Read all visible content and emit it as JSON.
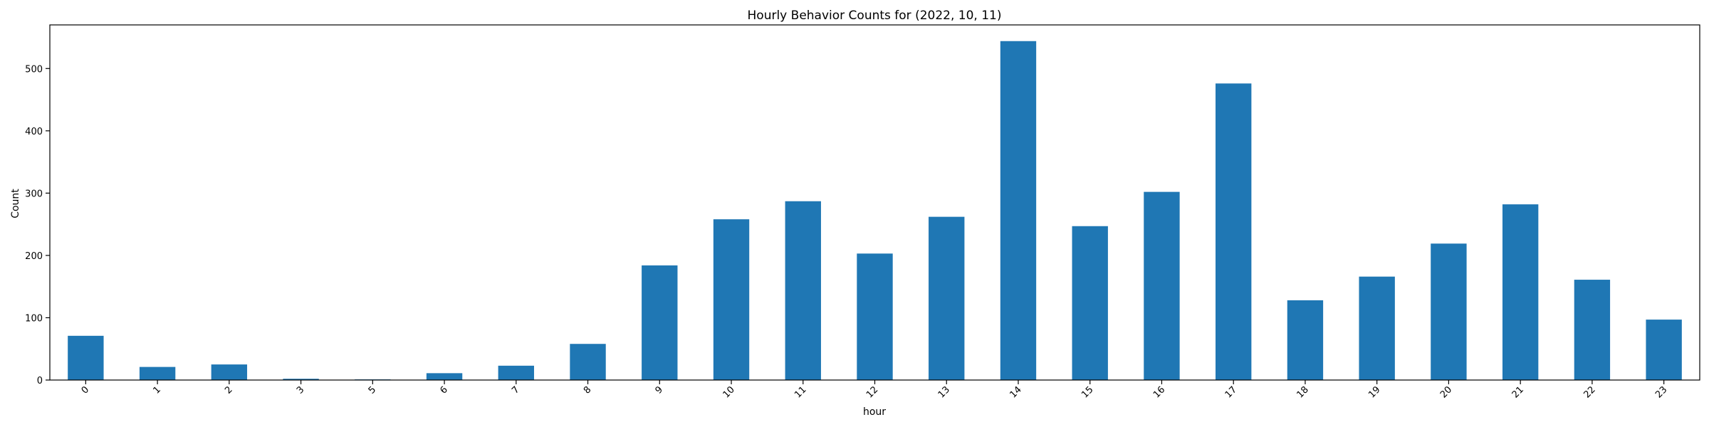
{
  "chart_data": {
    "type": "bar",
    "title": "Hourly Behavior Counts for (2022, 10, 11)",
    "xlabel": "hour",
    "ylabel": "Count",
    "categories": [
      "0",
      "1",
      "2",
      "3",
      "5",
      "6",
      "7",
      "8",
      "9",
      "10",
      "11",
      "12",
      "13",
      "14",
      "15",
      "16",
      "17",
      "18",
      "19",
      "20",
      "21",
      "22",
      "23"
    ],
    "values": [
      71,
      21,
      25,
      2,
      1,
      11,
      23,
      58,
      184,
      258,
      287,
      203,
      262,
      544,
      247,
      302,
      476,
      128,
      166,
      219,
      282,
      161,
      97
    ],
    "ylim": [
      0,
      570
    ],
    "yticks": [
      0,
      100,
      200,
      300,
      400,
      500
    ],
    "grid": false,
    "legend": "none",
    "bar_color": "#1f77b4",
    "xtick_rotation": 45
  }
}
